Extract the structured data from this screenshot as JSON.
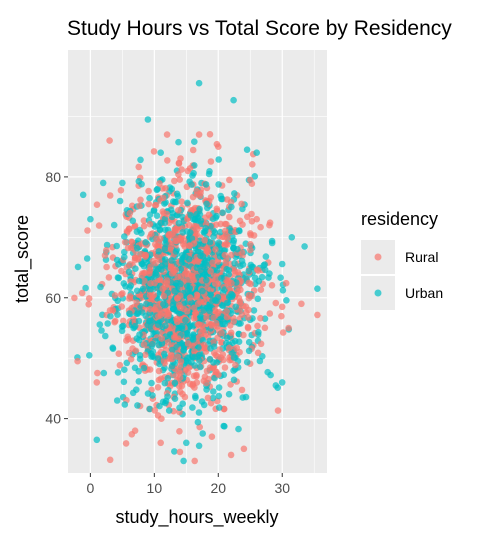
{
  "chart_data": {
    "type": "scatter",
    "title": "Study Hours vs Total Score by Residency",
    "xlabel": "study_hours_weekly",
    "ylabel": "total_score",
    "xlim": [
      -3.5,
      37
    ],
    "ylim": [
      31,
      101
    ],
    "xticks": [
      0,
      10,
      20,
      30
    ],
    "yticks": [
      40,
      60,
      80
    ],
    "grid": true,
    "legend": {
      "title": "residency",
      "placement": "right"
    },
    "series": [
      {
        "name": "Rural",
        "color": "#F8766D",
        "n_points": 1100,
        "center": [
          15,
          61
        ],
        "spread": [
          5.5,
          8.5
        ],
        "points": [
          [
            -2,
            49.5
          ],
          [
            17,
            87
          ],
          [
            25,
            79.5
          ],
          [
            28,
            72
          ],
          [
            31,
            55
          ],
          [
            33,
            59
          ],
          [
            30,
            58.5
          ],
          [
            19,
            37
          ],
          [
            22,
            34
          ],
          [
            24,
            35
          ],
          [
            14,
            34.5
          ],
          [
            11,
            36
          ],
          [
            7,
            38
          ],
          [
            1,
            46
          ],
          [
            3,
            86
          ],
          [
            12,
            87
          ],
          [
            20,
            85
          ],
          [
            26,
            73
          ]
        ]
      },
      {
        "name": "Urban",
        "color": "#00BFC4",
        "n_points": 1100,
        "center": [
          15,
          61
        ],
        "spread": [
          5.5,
          8.5
        ],
        "points": [
          [
            17,
            95.5
          ],
          [
            9,
            89.5
          ],
          [
            35.5,
            61.5
          ],
          [
            33.5,
            68.5
          ],
          [
            31.5,
            70
          ],
          [
            2,
            79
          ],
          [
            0,
            73
          ],
          [
            24.5,
            84.5
          ],
          [
            26,
            84
          ],
          [
            29,
            45.5
          ],
          [
            30,
            46
          ],
          [
            1,
            36.5
          ],
          [
            15,
            36
          ],
          [
            17,
            35.5
          ],
          [
            -0.5,
            66.5
          ],
          [
            11,
            84
          ],
          [
            5,
            79
          ],
          [
            28,
            64
          ]
        ]
      }
    ]
  }
}
